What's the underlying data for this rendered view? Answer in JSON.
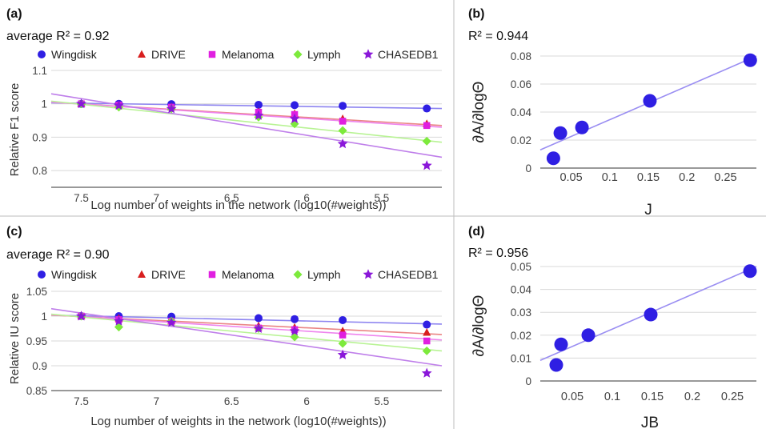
{
  "chart_data": [
    {
      "id": "a",
      "type": "scatter",
      "panel_label": "(a)",
      "subtitle": "average R² = 0.92",
      "xlabel": "Log number of weights in the network (log10(#weights))",
      "ylabel": "Relative F1 score",
      "x_reversed": true,
      "xlim": [
        7.7,
        5.1
      ],
      "ylim": [
        0.75,
        1.1
      ],
      "xticks": [
        "7.5",
        "7",
        "6.5",
        "6",
        "5.5"
      ],
      "yticks": [
        "0.8",
        "0.9",
        "1",
        "1.1"
      ],
      "series": [
        {
          "name": "Wingdisk",
          "color": "#2f1fe3",
          "marker": "circle",
          "x": [
            7.5,
            7.25,
            6.9,
            6.32,
            6.08,
            5.76,
            5.2
          ],
          "y": [
            1.0,
            1.0,
            0.999,
            0.997,
            0.996,
            0.994,
            0.986
          ],
          "trend": [
            [
              7.7,
              1.003
            ],
            [
              5.1,
              0.986
            ]
          ]
        },
        {
          "name": "DRIVE",
          "color": "#d81f1f",
          "marker": "triangle",
          "x": [
            7.5,
            7.25,
            6.9,
            6.32,
            6.08,
            5.76,
            5.2
          ],
          "y": [
            1.0,
            0.997,
            0.99,
            0.976,
            0.97,
            0.955,
            0.94
          ],
          "trend": [
            [
              7.7,
              1.005
            ],
            [
              5.1,
              0.935
            ]
          ]
        },
        {
          "name": "Melanoma",
          "color": "#e01fe0",
          "marker": "square",
          "x": [
            7.5,
            7.25,
            6.9,
            6.32,
            6.08,
            5.76,
            5.2
          ],
          "y": [
            1.0,
            0.996,
            0.99,
            0.975,
            0.968,
            0.948,
            0.935
          ],
          "trend": [
            [
              7.7,
              1.005
            ],
            [
              5.1,
              0.93
            ]
          ]
        },
        {
          "name": "Lymph",
          "color": "#7dea3c",
          "marker": "diamond",
          "x": [
            7.5,
            7.25,
            6.9,
            6.32,
            6.08,
            5.76,
            5.2
          ],
          "y": [
            1.0,
            0.99,
            0.985,
            0.96,
            0.94,
            0.92,
            0.888
          ],
          "trend": [
            [
              7.7,
              1.008
            ],
            [
              5.1,
              0.885
            ]
          ]
        },
        {
          "name": "CHASEDB1",
          "color": "#8a17d9",
          "marker": "star",
          "x": [
            7.5,
            7.25,
            6.9,
            6.32,
            6.08,
            5.76,
            5.2
          ],
          "y": [
            1.0,
            0.995,
            0.985,
            0.965,
            0.955,
            0.88,
            0.815
          ],
          "trend": [
            [
              7.7,
              1.03
            ],
            [
              5.1,
              0.84
            ]
          ]
        }
      ]
    },
    {
      "id": "b",
      "type": "scatter",
      "panel_label": "(b)",
      "subtitle": "R² = 0.944",
      "xlabel": "J",
      "ylabel": "∂A/∂logΘ",
      "xlim": [
        0.01,
        0.29
      ],
      "ylim": [
        0,
        0.08
      ],
      "xticks": [
        "0.05",
        "0.1",
        "0.15",
        "0.2",
        "0.25"
      ],
      "yticks": [
        "0",
        "0.02",
        "0.04",
        "0.06",
        "0.08"
      ],
      "points": {
        "x": [
          0.027,
          0.036,
          0.064,
          0.152,
          0.282
        ],
        "y": [
          0.007,
          0.025,
          0.029,
          0.048,
          0.077
        ]
      },
      "trend": [
        [
          0.01,
          0.013
        ],
        [
          0.29,
          0.08
        ]
      ],
      "point_color": "#2f1fe3",
      "line_color": "#9a8ef2"
    },
    {
      "id": "c",
      "type": "scatter",
      "panel_label": "(c)",
      "subtitle": "average R² = 0.90",
      "xlabel": "Log number of weights in the network (log10(#weights))",
      "ylabel": "Relative IU score",
      "x_reversed": true,
      "xlim": [
        7.7,
        5.1
      ],
      "ylim": [
        0.85,
        1.05
      ],
      "xticks": [
        "7.5",
        "7",
        "6.5",
        "6",
        "5.5"
      ],
      "yticks": [
        "0.85",
        "0.9",
        "0.95",
        "1",
        "1.05"
      ],
      "series": [
        {
          "name": "Wingdisk",
          "color": "#2f1fe3",
          "marker": "circle",
          "x": [
            7.5,
            7.25,
            6.9,
            6.32,
            6.08,
            5.76,
            5.2
          ],
          "y": [
            1.0,
            1.0,
            0.999,
            0.996,
            0.994,
            0.992,
            0.983
          ],
          "trend": [
            [
              7.7,
              1.002
            ],
            [
              5.1,
              0.984
            ]
          ]
        },
        {
          "name": "DRIVE",
          "color": "#d81f1f",
          "marker": "triangle",
          "x": [
            7.5,
            7.25,
            6.9,
            6.32,
            6.08,
            5.76,
            5.2
          ],
          "y": [
            1.0,
            0.995,
            0.99,
            0.98,
            0.977,
            0.97,
            0.967
          ],
          "trend": [
            [
              7.7,
              1.002
            ],
            [
              5.1,
              0.963
            ]
          ]
        },
        {
          "name": "Melanoma",
          "color": "#e01fe0",
          "marker": "square",
          "x": [
            7.5,
            7.25,
            6.9,
            6.32,
            6.08,
            5.76,
            5.2
          ],
          "y": [
            1.0,
            0.993,
            0.99,
            0.976,
            0.973,
            0.962,
            0.95
          ],
          "trend": [
            [
              7.7,
              1.003
            ],
            [
              5.1,
              0.952
            ]
          ]
        },
        {
          "name": "Lymph",
          "color": "#7dea3c",
          "marker": "diamond",
          "x": [
            7.5,
            7.25,
            6.9,
            6.32,
            6.08,
            5.76,
            5.2
          ],
          "y": [
            1.0,
            0.978,
            0.99,
            0.975,
            0.958,
            0.945,
            0.93
          ],
          "trend": [
            [
              7.7,
              1.004
            ],
            [
              5.1,
              0.93
            ]
          ]
        },
        {
          "name": "CHASEDB1",
          "color": "#8a17d9",
          "marker": "star",
          "x": [
            7.5,
            7.25,
            6.9,
            6.32,
            6.08,
            5.76,
            5.2
          ],
          "y": [
            1.0,
            0.99,
            0.987,
            0.975,
            0.97,
            0.922,
            0.885
          ],
          "trend": [
            [
              7.7,
              1.015
            ],
            [
              5.1,
              0.9
            ]
          ]
        }
      ]
    },
    {
      "id": "d",
      "type": "scatter",
      "panel_label": "(d)",
      "subtitle": "R² = 0.956",
      "xlabel": "JB",
      "ylabel": "∂A/∂logΘ",
      "xlim": [
        0.01,
        0.28
      ],
      "ylim": [
        0,
        0.05
      ],
      "xticks": [
        "0.05",
        "0.1",
        "0.15",
        "0.2",
        "0.25"
      ],
      "yticks": [
        "0",
        "0.01",
        "0.02",
        "0.03",
        "0.04",
        "0.05"
      ],
      "points": {
        "x": [
          0.03,
          0.036,
          0.07,
          0.148,
          0.272
        ],
        "y": [
          0.007,
          0.016,
          0.02,
          0.029,
          0.048
        ]
      },
      "trend": [
        [
          0.01,
          0.009
        ],
        [
          0.28,
          0.05
        ]
      ],
      "point_color": "#2f1fe3",
      "line_color": "#9a8ef2"
    }
  ]
}
